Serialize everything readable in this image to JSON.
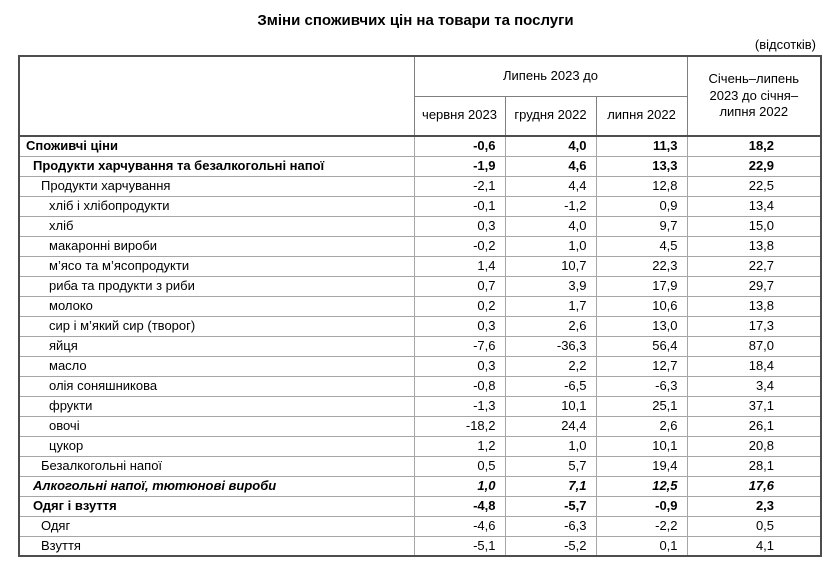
{
  "title": "Зміни споживчих цін на товари та послуги",
  "unit_note": "(відсотків)",
  "chart_data": {
    "type": "table",
    "title": "Зміни споживчих цін на товари та послуги",
    "unit": "(відсотків)",
    "group_header": "Липень 2023 до",
    "sub_columns": [
      "червня 2023",
      "грудня 2022",
      "липня 2022"
    ],
    "period_column": "Січень–липень 2023 до січня–липня 2022",
    "rows": [
      {
        "label": "Споживчі ціни",
        "indent": 0,
        "style": "bold",
        "values": [
          "-0,6",
          "4,0",
          "11,3",
          "18,2"
        ]
      },
      {
        "label": "Продукти харчування та безалкогольні напої",
        "indent": 1,
        "style": "bold",
        "values": [
          "-1,9",
          "4,6",
          "13,3",
          "22,9"
        ]
      },
      {
        "label": "Продукти харчування",
        "indent": 2,
        "style": "normal",
        "values": [
          "-2,1",
          "4,4",
          "12,8",
          "22,5"
        ]
      },
      {
        "label": "хліб і хлібопродукти",
        "indent": 3,
        "style": "normal",
        "values": [
          "-0,1",
          "-1,2",
          "0,9",
          "13,4"
        ]
      },
      {
        "label": "хліб",
        "indent": 3,
        "style": "normal",
        "values": [
          "0,3",
          "4,0",
          "9,7",
          "15,0"
        ]
      },
      {
        "label": "макаронні вироби",
        "indent": 3,
        "style": "normal",
        "values": [
          "-0,2",
          "1,0",
          "4,5",
          "13,8"
        ]
      },
      {
        "label": "м’ясо та м’ясопродукти",
        "indent": 3,
        "style": "normal",
        "values": [
          "1,4",
          "10,7",
          "22,3",
          "22,7"
        ]
      },
      {
        "label": "риба та продукти з риби",
        "indent": 3,
        "style": "normal",
        "values": [
          "0,7",
          "3,9",
          "17,9",
          "29,7"
        ]
      },
      {
        "label": "молоко",
        "indent": 3,
        "style": "normal",
        "values": [
          "0,2",
          "1,7",
          "10,6",
          "13,8"
        ]
      },
      {
        "label": "сир і м’який сир (творог)",
        "indent": 3,
        "style": "normal",
        "values": [
          "0,3",
          "2,6",
          "13,0",
          "17,3"
        ]
      },
      {
        "label": "яйця",
        "indent": 3,
        "style": "normal",
        "values": [
          "-7,6",
          "-36,3",
          "56,4",
          "87,0"
        ]
      },
      {
        "label": "масло",
        "indent": 3,
        "style": "normal",
        "values": [
          "0,3",
          "2,2",
          "12,7",
          "18,4"
        ]
      },
      {
        "label": "олія соняшникова",
        "indent": 3,
        "style": "normal",
        "values": [
          "-0,8",
          "-6,5",
          "-6,3",
          "3,4"
        ]
      },
      {
        "label": "фрукти",
        "indent": 3,
        "style": "normal",
        "values": [
          "-1,3",
          "10,1",
          "25,1",
          "37,1"
        ]
      },
      {
        "label": "овочі",
        "indent": 3,
        "style": "normal",
        "values": [
          "-18,2",
          "24,4",
          "2,6",
          "26,1"
        ]
      },
      {
        "label": "цукор",
        "indent": 3,
        "style": "normal",
        "values": [
          "1,2",
          "1,0",
          "10,1",
          "20,8"
        ]
      },
      {
        "label": "Безалкогольні напої",
        "indent": 2,
        "style": "normal",
        "values": [
          "0,5",
          "5,7",
          "19,4",
          "28,1"
        ]
      },
      {
        "label": "Алкогольні напої, тютюнові вироби",
        "indent": 1,
        "style": "bold-italic",
        "values": [
          "1,0",
          "7,1",
          "12,5",
          "17,6"
        ]
      },
      {
        "label": "Одяг і взуття",
        "indent": 1,
        "style": "bold",
        "values": [
          "-4,8",
          "-5,7",
          "-0,9",
          "2,3"
        ]
      },
      {
        "label": "Одяг",
        "indent": 2,
        "style": "normal",
        "values": [
          "-4,6",
          "-6,3",
          "-2,2",
          "0,5"
        ]
      },
      {
        "label": "Взуття",
        "indent": 2,
        "style": "normal",
        "values": [
          "-5,1",
          "-5,2",
          "0,1",
          "4,1"
        ]
      }
    ]
  }
}
